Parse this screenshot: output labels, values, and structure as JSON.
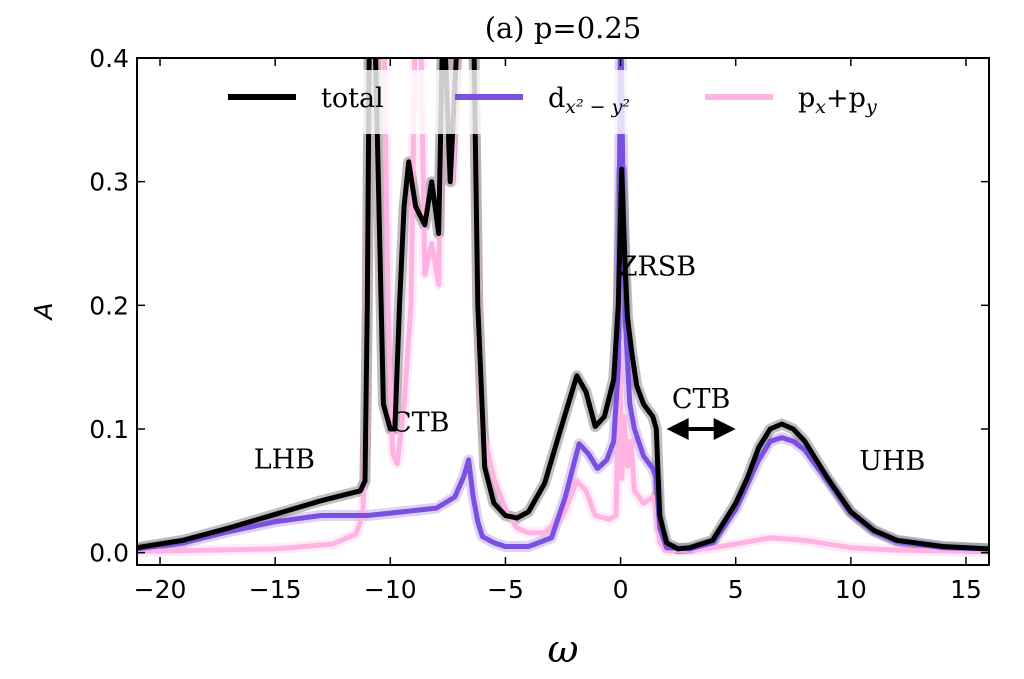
{
  "chart_data": {
    "type": "line",
    "title": "(a) p=0.25",
    "xlabel": "ω",
    "ylabel": "A",
    "xlim": [
      -21,
      16
    ],
    "ylim": [
      -0.01,
      0.4
    ],
    "xticks": [
      -20,
      -15,
      -10,
      -5,
      0,
      5,
      10,
      15
    ],
    "xtick_labels": [
      "−20",
      "−15",
      "−10",
      "−5",
      "0",
      "5",
      "10",
      "15"
    ],
    "yticks": [
      0.0,
      0.1,
      0.2,
      0.3,
      0.4
    ],
    "ytick_labels": [
      "0.0",
      "0.1",
      "0.2",
      "0.3",
      "0.4"
    ],
    "grid": false,
    "legend_placement": "top",
    "series": [
      {
        "name": "total",
        "legend_main": "total",
        "legend_sub": "",
        "legend_sub2": "",
        "color": "#000000",
        "x": [
          -21,
          -19,
          -17,
          -15,
          -13,
          -11.3,
          -11.1,
          -11.0,
          -10.9,
          -10.7,
          -10.3,
          -10.0,
          -9.8,
          -9.6,
          -9.4,
          -9.2,
          -8.9,
          -8.5,
          -8.2,
          -7.9,
          -7.7,
          -7.4,
          -7.0,
          -6.6,
          -6.4,
          -6.2,
          -5.9,
          -5.5,
          -5.0,
          -4.5,
          -4.0,
          -3.3,
          -2.6,
          -1.9,
          -1.5,
          -1.1,
          -0.7,
          -0.3,
          -0.1,
          0.05,
          0.2,
          0.3,
          0.5,
          0.7,
          1.0,
          1.4,
          1.55,
          1.7,
          2.0,
          2.5,
          3,
          4,
          5,
          5.5,
          6,
          6.5,
          7,
          7.5,
          8,
          8.5,
          9,
          10,
          11,
          12,
          14,
          16
        ],
        "y": [
          0.004,
          0.01,
          0.02,
          0.031,
          0.042,
          0.05,
          0.058,
          0.2,
          0.45,
          0.45,
          0.12,
          0.1,
          0.1,
          0.2,
          0.28,
          0.316,
          0.28,
          0.265,
          0.3,
          0.258,
          0.45,
          0.3,
          0.45,
          0.45,
          0.45,
          0.2,
          0.069,
          0.04,
          0.03,
          0.028,
          0.033,
          0.056,
          0.1,
          0.143,
          0.13,
          0.102,
          0.11,
          0.14,
          0.2,
          0.31,
          0.23,
          0.19,
          0.16,
          0.135,
          0.12,
          0.11,
          0.1,
          0.03,
          0.008,
          0.003,
          0.004,
          0.01,
          0.04,
          0.06,
          0.085,
          0.1,
          0.104,
          0.1,
          0.09,
          0.075,
          0.06,
          0.033,
          0.018,
          0.01,
          0.005,
          0.003
        ]
      },
      {
        "name": "d_{x²−y²}",
        "legend_main": "d",
        "legend_sub": "x² − y²",
        "legend_sub2": "",
        "color": "#7b4fe0",
        "x": [
          -21,
          -19,
          -17,
          -15,
          -13,
          -11,
          -10,
          -9,
          -8,
          -7.2,
          -6.8,
          -6.6,
          -6.4,
          -6.2,
          -6.0,
          -5.5,
          -5,
          -4,
          -3,
          -2.4,
          -1.8,
          -1.4,
          -1,
          -0.6,
          -0.3,
          -0.1,
          0,
          0.1,
          0.2,
          0.4,
          0.6,
          1.0,
          1.4,
          1.55,
          1.7,
          2,
          3,
          4,
          5,
          5.5,
          6,
          6.5,
          7,
          7.5,
          8,
          8.5,
          9,
          10,
          11,
          12,
          14,
          16
        ],
        "y": [
          0.003,
          0.008,
          0.017,
          0.025,
          0.03,
          0.03,
          0.032,
          0.034,
          0.036,
          0.045,
          0.062,
          0.075,
          0.045,
          0.025,
          0.013,
          0.008,
          0.005,
          0.005,
          0.012,
          0.045,
          0.088,
          0.08,
          0.068,
          0.075,
          0.09,
          0.15,
          0.45,
          0.3,
          0.19,
          0.12,
          0.1,
          0.078,
          0.068,
          0.06,
          0.02,
          0.004,
          0.003,
          0.008,
          0.035,
          0.055,
          0.075,
          0.09,
          0.093,
          0.09,
          0.083,
          0.07,
          0.058,
          0.032,
          0.017,
          0.009,
          0.004,
          0.003
        ]
      },
      {
        "name": "p_x+p_y",
        "legend_main": "p",
        "legend_sub": "x",
        "legend_mid": "+p",
        "legend_sub2": "y",
        "color": "#ffb3e2",
        "x": [
          -21,
          -18,
          -15,
          -12.5,
          -11.5,
          -11.2,
          -11.05,
          -10.9,
          -10.3,
          -10.1,
          -9.9,
          -9.7,
          -9.4,
          -9.1,
          -8.9,
          -8.7,
          -8.5,
          -8.2,
          -7.9,
          -7.7,
          -7.3,
          -7.0,
          -6.7,
          -6.4,
          -6.2,
          -6.0,
          -5.5,
          -5,
          -4.5,
          -4,
          -3.3,
          -2.5,
          -1.9,
          -1.5,
          -1.1,
          -0.5,
          -0.2,
          -0.05,
          0.05,
          0.15,
          0.3,
          0.45,
          0.6,
          1.0,
          1.4,
          1.55,
          1.7,
          2,
          3,
          4,
          5,
          6.5,
          8,
          10,
          12,
          16
        ],
        "y": [
          0.001,
          0.002,
          0.003,
          0.007,
          0.015,
          0.03,
          0.1,
          0.45,
          0.45,
          0.2,
          0.08,
          0.072,
          0.12,
          0.2,
          0.45,
          0.45,
          0.225,
          0.25,
          0.217,
          0.45,
          0.3,
          0.45,
          0.45,
          0.45,
          0.2,
          0.1,
          0.06,
          0.035,
          0.02,
          0.016,
          0.016,
          0.03,
          0.058,
          0.05,
          0.03,
          0.027,
          0.03,
          0.17,
          0.06,
          0.11,
          0.07,
          0.09,
          0.05,
          0.04,
          0.045,
          0.035,
          0.008,
          0.002,
          0.002,
          0.004,
          0.007,
          0.012,
          0.01,
          0.004,
          0.002,
          0.001
        ]
      }
    ],
    "annotations": [
      {
        "text": "LHB",
        "x": -14.6,
        "y": 0.076
      },
      {
        "text": "CTB",
        "x": -8.7,
        "y": 0.106
      },
      {
        "text": "ZRSB",
        "x": 1.6,
        "y": 0.232
      },
      {
        "text": "CTB",
        "x": 3.5,
        "y": 0.125
      },
      {
        "text": "UHB",
        "x": 11.8,
        "y": 0.075
      }
    ],
    "arrow": {
      "from": 2.0,
      "to": 5.0,
      "y": 0.1,
      "style": "double-headed"
    }
  }
}
